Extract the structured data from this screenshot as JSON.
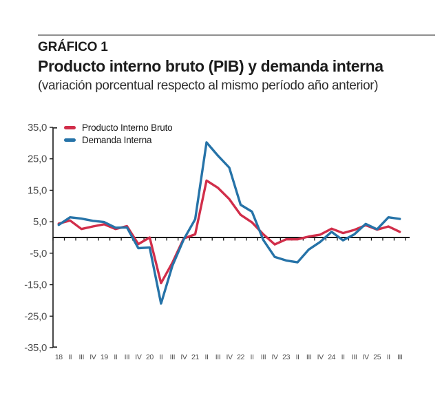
{
  "chart_data": {
    "type": "line",
    "figure_label": "GRÁFICO 1",
    "title": "Producto interno bruto (PIB) y demanda interna",
    "subtitle": "(variación porcentual respecto al mismo período año anterior)",
    "x_labels": [
      "18",
      "II",
      "III",
      "IV",
      "19",
      "II",
      "III",
      "IV",
      "20",
      "II",
      "III",
      "IV",
      "21",
      "II",
      "III",
      "IV",
      "22",
      "II",
      "III",
      "IV",
      "23",
      "II",
      "III",
      "IV",
      "24",
      "II",
      "III",
      "IV",
      "25",
      "II",
      "III"
    ],
    "y_ticks": [
      "35,0",
      "25,0",
      "15,0",
      "5,0",
      "-5,0",
      "-15,0",
      "-25,0",
      "-35,0"
    ],
    "ylim": [
      -35,
      35
    ],
    "grid": false,
    "legend_position": "top-left",
    "zero_baseline": true,
    "axis_color": "#1a1a1a",
    "tick_label_color": "#4c4c4c",
    "divider_color": "#8f8f8f",
    "series": [
      {
        "name": "Producto Interno Bruto",
        "color": "#d12e4a",
        "values": [
          4.4,
          5.4,
          2.7,
          3.5,
          4.2,
          2.7,
          3.6,
          -2.1,
          0.0,
          -14.5,
          -8.0,
          -0.3,
          1.0,
          18.1,
          15.8,
          12.2,
          7.2,
          4.8,
          1.0,
          -2.2,
          -0.6,
          -0.6,
          0.3,
          0.9,
          2.8,
          1.4,
          2.4,
          3.9,
          2.5,
          3.5,
          1.8
        ]
      },
      {
        "name": "Demanda Interna",
        "color": "#2673a8",
        "values": [
          4.0,
          6.4,
          6.0,
          5.3,
          4.9,
          3.1,
          3.2,
          -3.4,
          -3.2,
          -21.0,
          -9.0,
          -0.6,
          5.8,
          30.2,
          26.0,
          22.2,
          10.4,
          8.2,
          -0.8,
          -6.2,
          -7.3,
          -7.9,
          -3.8,
          -1.4,
          1.8,
          -0.9,
          1.0,
          4.3,
          2.6,
          6.4,
          5.9
        ]
      }
    ]
  }
}
